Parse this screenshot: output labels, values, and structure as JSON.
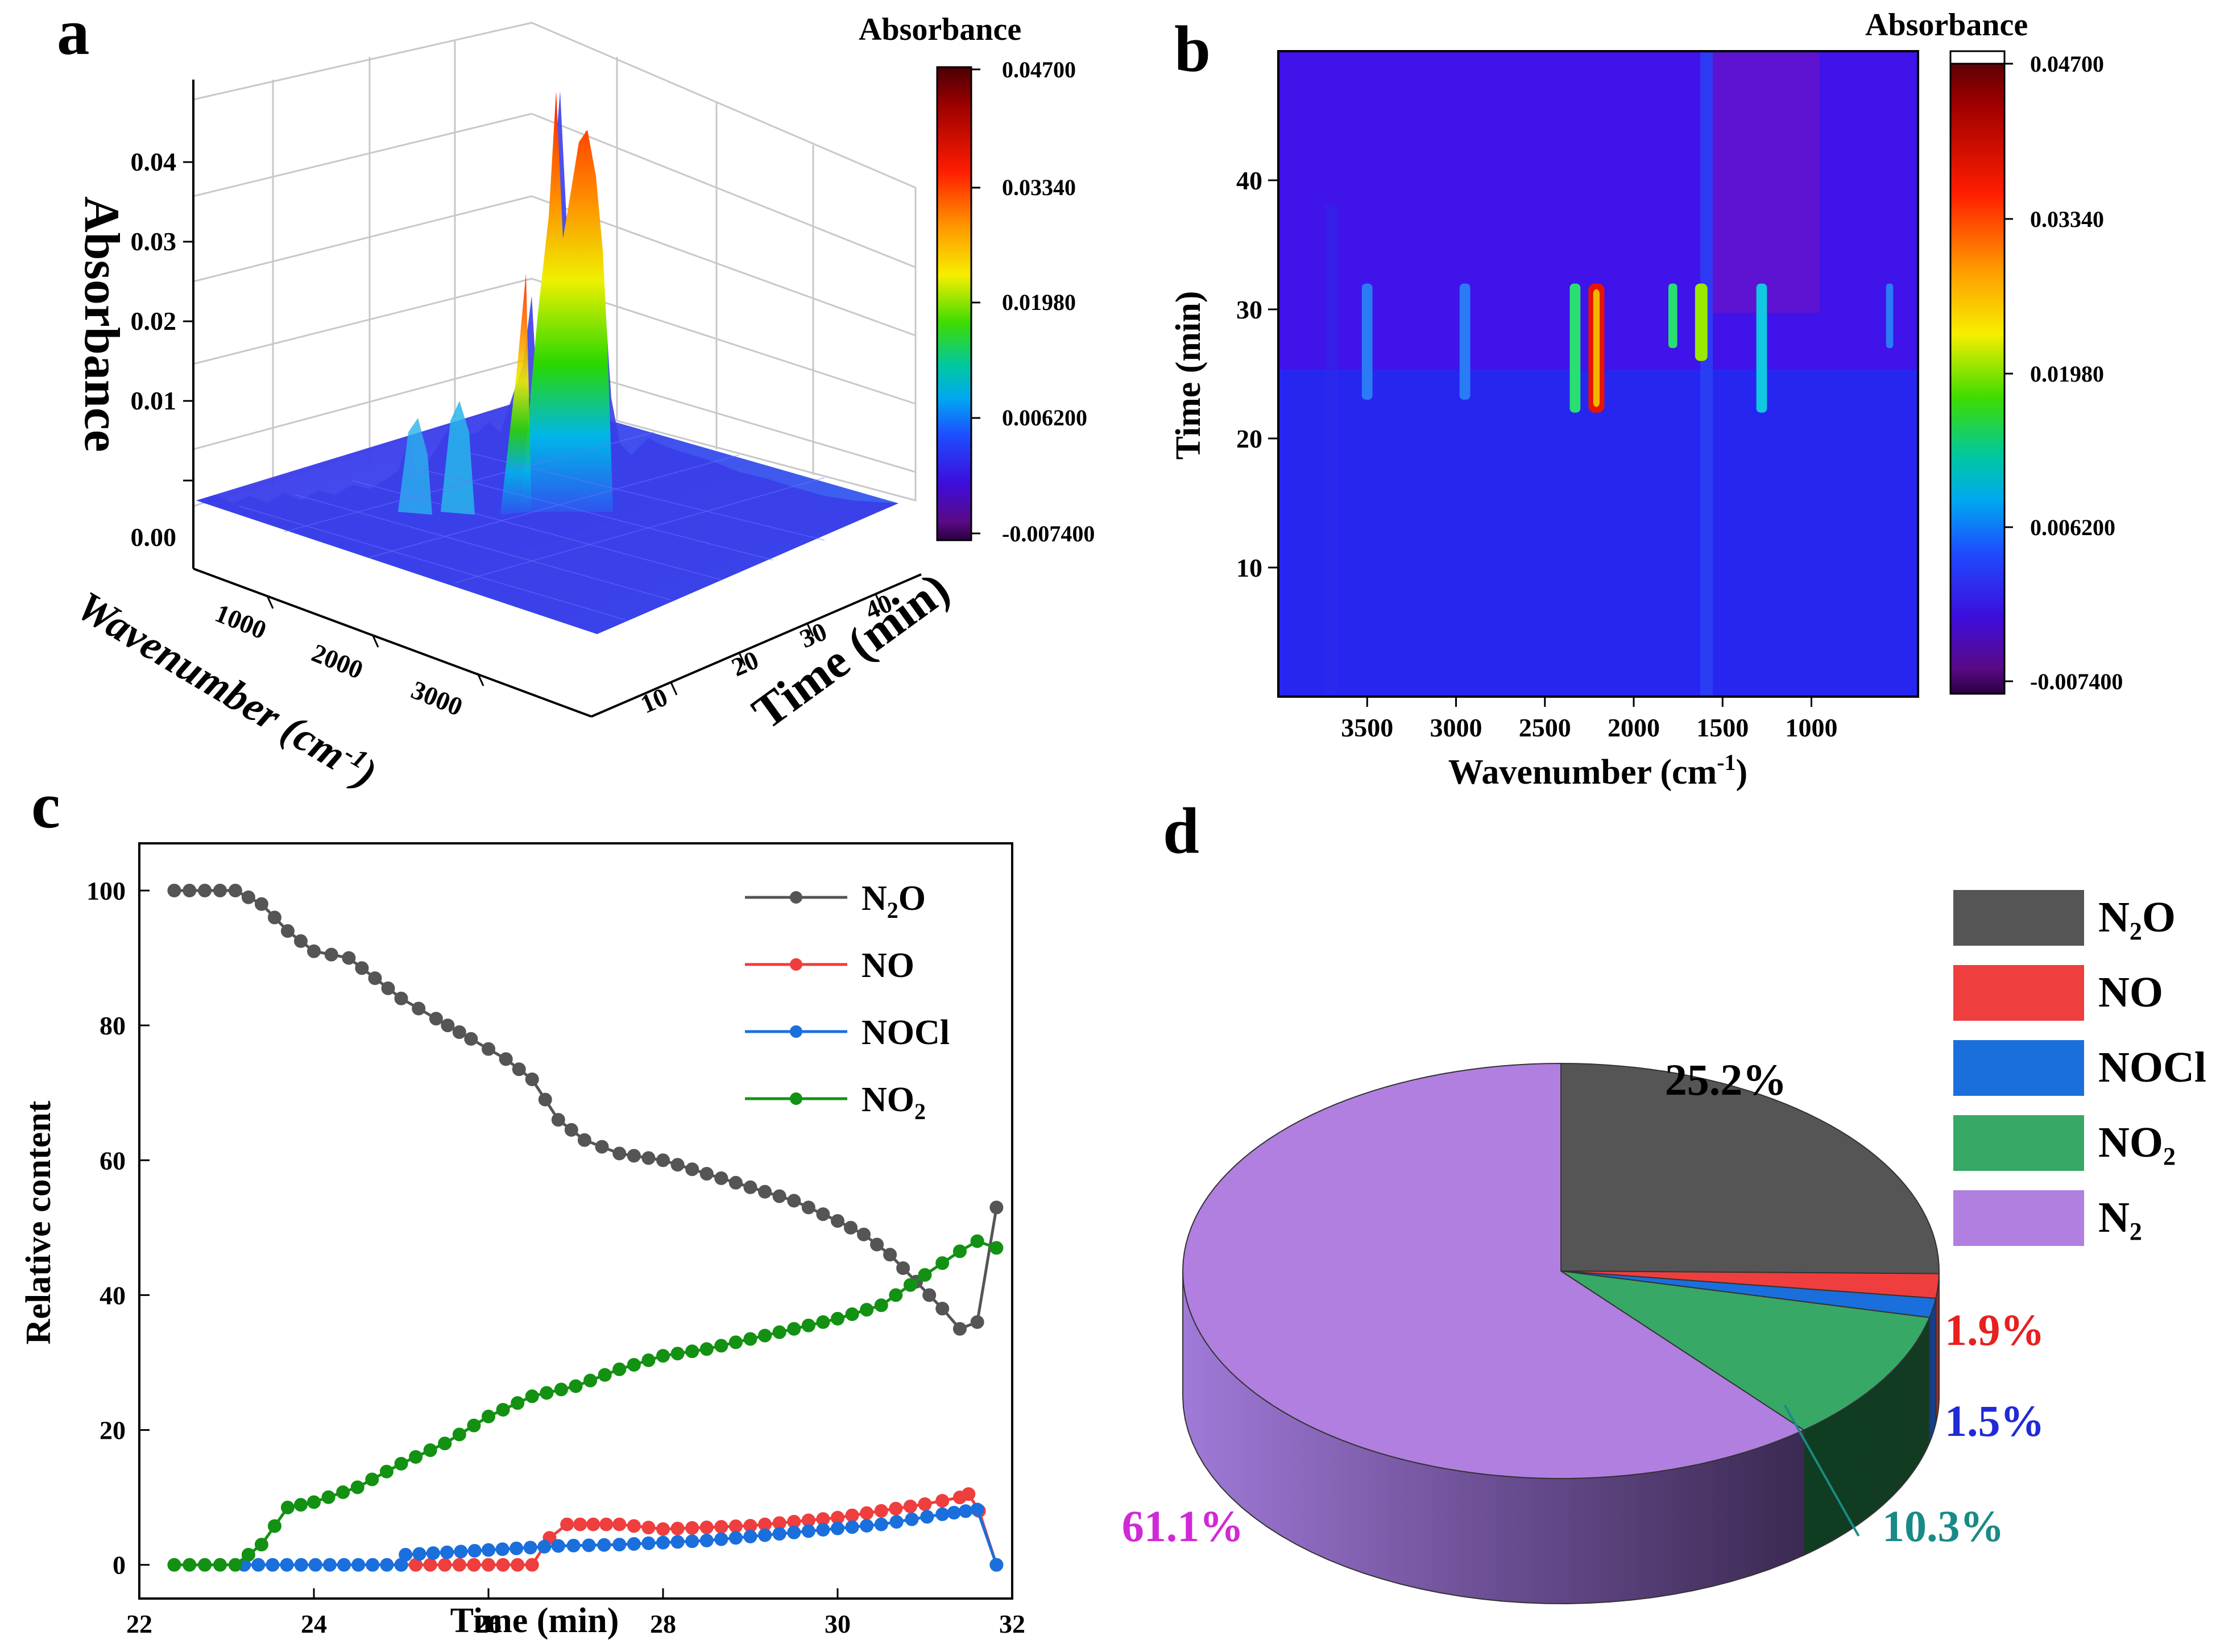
{
  "figure": {
    "panel_labels": [
      "a",
      "b",
      "c",
      "d"
    ],
    "colors": {
      "n2o": "#555555",
      "no": "#ef3e3e",
      "nocl": "#1a6fdc",
      "no2": "#139113",
      "n2": "#b07fe0",
      "pie_no2": "#38a866"
    }
  },
  "chart_data": [
    {
      "id": "a",
      "type": "heatmap",
      "title": "",
      "colorbar_title": "Absorbance",
      "colorbar_ticks": [
        "0.04700",
        "0.03340",
        "0.01980",
        "0.006200",
        "-0.007400"
      ],
      "zlabel": "Absorbance",
      "xlabel": "Wavenumber (cm",
      "xlabel_sup": "-1",
      "xlabel_close": ")",
      "ylabel": "Time (min)",
      "z_ticks": [
        "0.04",
        "0.03",
        "0.02",
        "0.01",
        "0.00"
      ],
      "x_ticks": [
        "1000",
        "2000",
        "3000"
      ],
      "y_ticks": [
        "10",
        "20",
        "30",
        "40"
      ]
    },
    {
      "id": "b",
      "type": "heatmap",
      "colorbar_title": "Absorbance",
      "colorbar_ticks": [
        "0.04700",
        "0.03340",
        "0.01980",
        "0.006200",
        "-0.007400"
      ],
      "xlabel": "Wavenumber (cm",
      "xlabel_sup": "-1",
      "xlabel_close": ")",
      "ylabel": "Time (min)",
      "x_ticks": [
        3500,
        3000,
        2500,
        2000,
        1500,
        1000
      ],
      "y_ticks": [
        10,
        20,
        30,
        40
      ],
      "xlim": [
        4000,
        400
      ],
      "ylim": [
        0,
        50
      ],
      "bands": [
        {
          "center": 3500,
          "width": 60,
          "t": [
            23,
            32
          ],
          "intensity": 0.22
        },
        {
          "center": 2950,
          "width": 60,
          "t": [
            23,
            32
          ],
          "intensity": 0.15
        },
        {
          "center": 2330,
          "width": 60,
          "t": [
            22,
            32
          ],
          "intensity": 0.55
        },
        {
          "center": 2210,
          "width": 90,
          "t": [
            22,
            32
          ],
          "intensity": 0.97
        },
        {
          "center": 1780,
          "width": 50,
          "t": [
            27,
            32
          ],
          "intensity": 0.5
        },
        {
          "center": 1620,
          "width": 70,
          "t": [
            26,
            32
          ],
          "intensity": 0.62
        },
        {
          "center": 1280,
          "width": 60,
          "t": [
            22,
            32
          ],
          "intensity": 0.42
        },
        {
          "center": 560,
          "width": 40,
          "t": [
            27,
            32
          ],
          "intensity": 0.25
        }
      ]
    },
    {
      "id": "c",
      "type": "line",
      "xlabel": "Time (min)",
      "ylabel": "Relative content",
      "xlim": [
        22,
        32
      ],
      "ylim": [
        -5,
        107
      ],
      "x_ticks": [
        22,
        24,
        26,
        28,
        30,
        32
      ],
      "y_ticks": [
        0,
        20,
        40,
        60,
        80,
        100
      ],
      "legend_position": "top-right",
      "series": [
        {
          "name": "N",
          "sub": "2",
          "tail": "O",
          "color": "#555555",
          "points": [
            [
              22.4,
              100
            ],
            [
              23.1,
              100
            ],
            [
              23.4,
              98
            ],
            [
              23.7,
              94
            ],
            [
              24.0,
              91
            ],
            [
              24.4,
              90
            ],
            [
              24.7,
              87
            ],
            [
              25.0,
              84
            ],
            [
              25.4,
              81
            ],
            [
              25.8,
              78
            ],
            [
              26.2,
              75
            ],
            [
              26.5,
              72
            ],
            [
              26.8,
              66
            ],
            [
              27.1,
              63
            ],
            [
              27.5,
              61
            ],
            [
              28.0,
              60
            ],
            [
              28.5,
              58
            ],
            [
              29.0,
              56
            ],
            [
              29.5,
              54
            ],
            [
              30.0,
              51
            ],
            [
              30.3,
              49
            ],
            [
              30.6,
              46
            ],
            [
              30.9,
              42
            ],
            [
              31.2,
              38
            ],
            [
              31.4,
              35
            ],
            [
              31.6,
              36
            ],
            [
              31.82,
              53
            ]
          ]
        },
        {
          "name": "NO",
          "sub": "",
          "tail": "",
          "color": "#ef3e3e",
          "points": [
            [
              25.0,
              0
            ],
            [
              26.5,
              0
            ],
            [
              26.7,
              4
            ],
            [
              26.9,
              6
            ],
            [
              27.5,
              6
            ],
            [
              28.0,
              5.3
            ],
            [
              29.0,
              5.8
            ],
            [
              30.0,
              7
            ],
            [
              31.0,
              9
            ],
            [
              31.4,
              10
            ],
            [
              31.5,
              10.5
            ],
            [
              31.62,
              8
            ],
            [
              31.82,
              0
            ]
          ]
        },
        {
          "name": "NOCl",
          "sub": "",
          "tail": "",
          "color": "#1a6fdc",
          "points": [
            [
              23.2,
              0
            ],
            [
              25.0,
              0
            ],
            [
              25.05,
              1.5
            ],
            [
              26.0,
              2.2
            ],
            [
              26.8,
              2.8
            ],
            [
              27.5,
              3
            ],
            [
              28.5,
              3.6
            ],
            [
              29.5,
              4.8
            ],
            [
              30.5,
              6
            ],
            [
              31.2,
              7.5
            ],
            [
              31.6,
              8.2
            ],
            [
              31.82,
              0
            ]
          ]
        },
        {
          "name": "NO",
          "sub": "2",
          "tail": "",
          "color": "#139113",
          "points": [
            [
              22.4,
              0
            ],
            [
              23.1,
              0
            ],
            [
              23.4,
              3
            ],
            [
              23.7,
              8.5
            ],
            [
              24.0,
              9.3
            ],
            [
              24.5,
              11.5
            ],
            [
              25.0,
              15
            ],
            [
              25.5,
              18
            ],
            [
              26.0,
              22
            ],
            [
              26.5,
              25
            ],
            [
              27.0,
              26.5
            ],
            [
              27.5,
              29
            ],
            [
              28.0,
              31
            ],
            [
              28.5,
              32
            ],
            [
              29.0,
              33.5
            ],
            [
              29.5,
              35
            ],
            [
              30.0,
              36.5
            ],
            [
              30.5,
              38.5
            ],
            [
              31.0,
              43
            ],
            [
              31.4,
              46.5
            ],
            [
              31.6,
              48
            ],
            [
              31.82,
              47
            ]
          ]
        }
      ]
    },
    {
      "id": "d",
      "type": "pie",
      "labels": [
        "N2O",
        "NO",
        "NOCl",
        "NO2",
        "N2"
      ],
      "legend": [
        {
          "name": "N",
          "sub": "2",
          "tail": "O",
          "color": "#555555"
        },
        {
          "name": "NO",
          "sub": "",
          "tail": "",
          "color": "#ef3e3e"
        },
        {
          "name": "NOCl",
          "sub": "",
          "tail": "",
          "color": "#1a6fdc"
        },
        {
          "name": "NO",
          "sub": "2",
          "tail": "",
          "color": "#38a866"
        },
        {
          "name": "N",
          "sub": "2",
          "tail": "",
          "color": "#b07fe0"
        }
      ],
      "values": [
        25.2,
        1.9,
        1.5,
        10.3,
        61.1
      ],
      "value_labels": [
        "25.2%",
        "1.9%",
        "1.5%",
        "10.3%",
        "61.1%"
      ],
      "label_colors": [
        "#000000",
        "#e82020",
        "#1f2bd6",
        "#1a8a86",
        "#d02ad6"
      ]
    }
  ]
}
